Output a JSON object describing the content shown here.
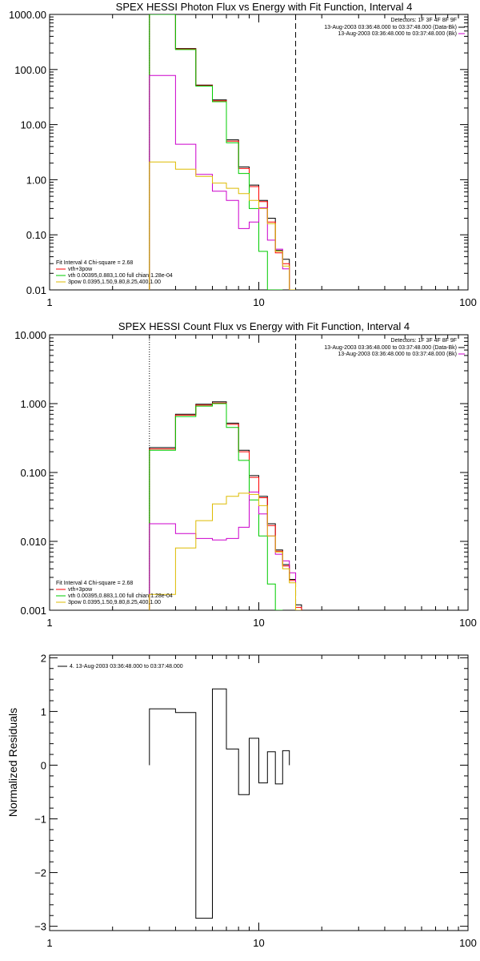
{
  "chart_data": [
    {
      "type": "line",
      "title": "SPEX HESSI Photon Flux vs Energy with Fit Function, Interval 4",
      "xscale": "log",
      "yscale": "log",
      "xlim": [
        1,
        100
      ],
      "ylim": [
        0.01,
        1000
      ],
      "x_ticks": [
        1,
        10,
        100
      ],
      "x_tick_labels": [
        "1",
        "10",
        "100"
      ],
      "y_ticks": [
        0.01,
        0.1,
        1,
        10,
        100,
        1000
      ],
      "y_tick_labels": [
        "0.01",
        "0.10",
        "1.00",
        "10.00",
        "100.00",
        "1000.00"
      ],
      "vlines": [
        {
          "x": 3.0,
          "style": "dotted"
        },
        {
          "x": 15.0,
          "style": "dashed"
        }
      ],
      "info": {
        "detectors": "Detectors: 1F 3F 4F 8F 9F",
        "lines": [
          {
            "text": "13-Aug-2003 03:36:48.000 to 03:37:48.000 (Data-Bk)",
            "color": "#000000"
          },
          {
            "text": "13-Aug-2003 03:36:48.000 to 03:37:48.000 (Bk)",
            "color": "#cc00cc"
          }
        ]
      },
      "fit_legend": {
        "header": "Fit Interval  4   Chi-square = 2.68",
        "items": [
          {
            "text": "vth+3pow",
            "color": "#ff0000"
          },
          {
            "text": "vth 0.00395,0.883,1.00  full chian 1.28e-04",
            "color": "#00cc00"
          },
          {
            "text": "3pow 0.0395,1.50,9.80,8.25,400,1.00",
            "color": "#ddbb00"
          }
        ]
      },
      "bin_edges": [
        3.0,
        4.0,
        5.0,
        6.0,
        7.0,
        8.0,
        9.0,
        10.0,
        11.0,
        12.0,
        13.0,
        14.0,
        15.0
      ],
      "series": [
        {
          "color": "#000000",
          "values": [
            1000,
            240,
            52,
            28,
            5.3,
            1.7,
            0.8,
            0.42,
            0.2,
            0.052,
            0.036,
            null
          ]
        },
        {
          "color": "#ff0000",
          "values": [
            1000,
            235,
            51,
            27,
            5.0,
            1.6,
            0.75,
            0.4,
            0.17,
            0.047,
            0.03,
            null
          ]
        },
        {
          "color": "#00cc00",
          "values": [
            1000,
            230,
            50,
            26,
            4.7,
            1.3,
            0.3,
            0.05,
            0.01,
            0.0005,
            null,
            null
          ]
        },
        {
          "color": "#cc00cc",
          "values": [
            78,
            4.4,
            1.25,
            0.62,
            0.42,
            0.13,
            0.17,
            0.31,
            0.08,
            0.055,
            0.024,
            null
          ]
        },
        {
          "color": "#ddbb00",
          "values": [
            2.1,
            1.55,
            1.15,
            0.87,
            0.7,
            0.56,
            0.42,
            0.3,
            0.16,
            0.05,
            0.027,
            0.01
          ]
        }
      ]
    },
    {
      "type": "line",
      "title": "SPEX HESSI Count Flux vs Energy with Fit Function, Interval 4",
      "xscale": "log",
      "yscale": "log",
      "xlim": [
        1,
        100
      ],
      "ylim": [
        0.001,
        10
      ],
      "x_ticks": [
        1,
        10,
        100
      ],
      "x_tick_labels": [
        "1",
        "10",
        "100"
      ],
      "y_ticks": [
        0.001,
        0.01,
        0.1,
        1,
        10
      ],
      "y_tick_labels": [
        "0.001",
        "0.010",
        "0.100",
        "1.000",
        "10.000"
      ],
      "vlines": [
        {
          "x": 3.0,
          "style": "dotted"
        },
        {
          "x": 15.0,
          "style": "dashed"
        }
      ],
      "info": {
        "detectors": "Detectors: 1F 3F 4F 8F 9F",
        "lines": [
          {
            "text": "13-Aug-2003 03:36:48.000 to 03:37:48.000 (Data-Bk)",
            "color": "#000000"
          },
          {
            "text": "13-Aug-2003 03:36:48.000 to 03:37:48.000 (Bk)",
            "color": "#cc00cc"
          }
        ]
      },
      "fit_legend": {
        "header": "Fit Interval  4   Chi-square = 2.68",
        "items": [
          {
            "text": "vth+3pow",
            "color": "#ff0000"
          },
          {
            "text": "vth 0.00395,0.883,1.00  full chian 1.28e-04",
            "color": "#00cc00"
          },
          {
            "text": "3pow 0.0395,1.50,9.80,8.25,400,1.00",
            "color": "#ddbb00"
          }
        ]
      },
      "bin_edges": [
        3.0,
        4.0,
        5.0,
        6.0,
        7.0,
        8.0,
        9.0,
        10.0,
        11.0,
        12.0,
        13.0,
        14.0,
        15.0,
        16.0
      ],
      "series": [
        {
          "color": "#000000",
          "values": [
            0.23,
            0.7,
            0.98,
            1.06,
            0.52,
            0.21,
            0.09,
            0.045,
            0.018,
            0.0075,
            0.0046,
            0.0028,
            0.0012
          ]
        },
        {
          "color": "#ff0000",
          "values": [
            0.22,
            0.68,
            0.95,
            1.02,
            0.5,
            0.2,
            0.085,
            0.043,
            0.017,
            0.0072,
            0.0044,
            0.0027,
            0.0011
          ]
        },
        {
          "color": "#00cc00",
          "values": [
            0.21,
            0.65,
            0.92,
            1.0,
            0.45,
            0.15,
            0.04,
            0.012,
            0.0024,
            0.0004,
            null,
            null,
            null
          ]
        },
        {
          "color": "#cc00cc",
          "values": [
            0.018,
            0.013,
            0.011,
            0.0105,
            0.011,
            0.016,
            0.052,
            0.025,
            0.012,
            0.0065,
            0.0052,
            0.0035,
            null
          ]
        },
        {
          "color": "#ddbb00",
          "values": [
            0.0017,
            0.008,
            0.02,
            0.035,
            0.045,
            0.05,
            0.048,
            0.033,
            0.012,
            0.007,
            0.004,
            0.0025,
            0.001
          ]
        }
      ]
    },
    {
      "type": "line",
      "xscale": "log",
      "yscale": "linear",
      "xlim": [
        1,
        100
      ],
      "ylim": [
        -3.08,
        2.05
      ],
      "x_ticks": [
        1,
        10,
        100
      ],
      "x_tick_labels": [
        "1",
        "10",
        "100"
      ],
      "y_ticks": [
        -3,
        -2,
        -1,
        0,
        1,
        2
      ],
      "y_tick_labels": [
        "−3",
        "−2",
        "−1",
        "0",
        "1",
        "2"
      ],
      "ylabel": "Normalized Residuals",
      "legend": "4. 13-Aug-2003 03:36:48.000 to 03:37:48.000",
      "bin_edges": [
        3.0,
        4.0,
        5.0,
        6.0,
        7.0,
        8.0,
        9.0,
        10.0,
        11.0,
        12.0,
        13.0,
        14.0,
        15.0
      ],
      "series": [
        {
          "color": "#000000",
          "values": [
            1.05,
            0.98,
            -2.85,
            1.42,
            0.3,
            -0.55,
            0.5,
            -0.33,
            0.25,
            -0.35,
            0.27,
            null
          ]
        }
      ]
    }
  ]
}
